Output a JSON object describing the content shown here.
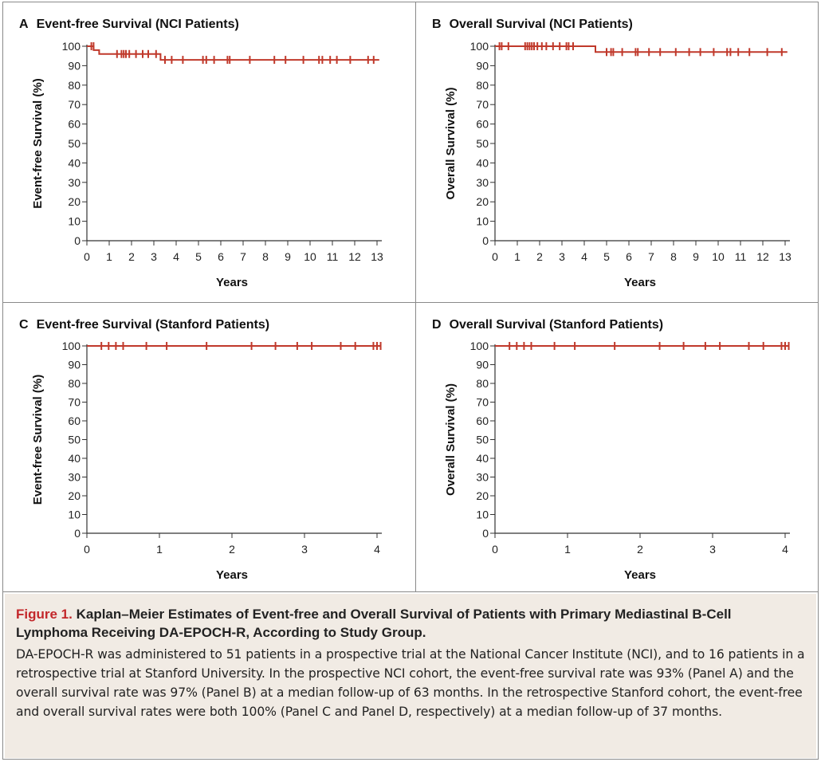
{
  "figure": {
    "label": "Figure 1.",
    "title": "Kaplan–Meier Estimates of Event-free and Overall Survival of Patients with Primary Mediastinal B-Cell Lymphoma Receiving DA-EPOCH-R, According to Study Group.",
    "body": "DA-EPOCH-R was administered to 51 patients in a prospective trial at the National Cancer Institute (NCI), and to 16 patients in a retrospective trial at Stanford University. In the prospective NCI cohort, the event-free survival rate was 93% (Panel A) and the overall survival rate was 97% (Panel B) at a median follow-up of 63 months. In the retrospective Stanford cohort, the event-free and overall survival rates were both 100% (Panel C and Panel D, respectively) at a median follow-up of 37 months."
  },
  "colors": {
    "curve": "#c0392b",
    "axis": "#333333",
    "frame": "#8a8a8a",
    "caption_bg": "#f1ebe4",
    "figure_label": "#c3282b"
  },
  "chart_data": [
    {
      "panel": "A",
      "type": "line",
      "step": true,
      "title": "Event-free Survival (NCI Patients)",
      "xlabel": "Years",
      "ylabel": "Event-free Survival (%)",
      "xlim": [
        0,
        13
      ],
      "ylim": [
        0,
        100
      ],
      "xticks": [
        0,
        1,
        2,
        3,
        4,
        5,
        6,
        7,
        8,
        9,
        10,
        11,
        12,
        13
      ],
      "yticks": [
        0,
        10,
        20,
        30,
        40,
        50,
        60,
        70,
        80,
        90,
        100
      ],
      "series": [
        {
          "steps": [
            [
              0,
              100
            ],
            [
              0.3,
              98
            ],
            [
              0.55,
              96
            ],
            [
              3.3,
              93
            ],
            [
              13.1,
              93
            ]
          ],
          "censored": [
            [
              0.2,
              100
            ],
            [
              0.3,
              100
            ],
            [
              1.35,
              96
            ],
            [
              1.55,
              96
            ],
            [
              1.65,
              96
            ],
            [
              1.75,
              96
            ],
            [
              1.9,
              96
            ],
            [
              2.2,
              96
            ],
            [
              2.5,
              96
            ],
            [
              2.75,
              96
            ],
            [
              3.1,
              96
            ],
            [
              3.5,
              93
            ],
            [
              3.8,
              93
            ],
            [
              4.3,
              93
            ],
            [
              5.2,
              93
            ],
            [
              5.35,
              93
            ],
            [
              5.7,
              93
            ],
            [
              6.3,
              93
            ],
            [
              6.4,
              93
            ],
            [
              7.3,
              93
            ],
            [
              8.4,
              93
            ],
            [
              8.9,
              93
            ],
            [
              9.7,
              93
            ],
            [
              10.4,
              93
            ],
            [
              10.55,
              93
            ],
            [
              10.9,
              93
            ],
            [
              11.2,
              93
            ],
            [
              11.8,
              93
            ],
            [
              12.6,
              93
            ],
            [
              12.85,
              93
            ]
          ]
        }
      ]
    },
    {
      "panel": "B",
      "type": "line",
      "step": true,
      "title": "Overall Survival (NCI Patients)",
      "xlabel": "Years",
      "ylabel": "Overall Survival (%)",
      "xlim": [
        0,
        13
      ],
      "ylim": [
        0,
        100
      ],
      "xticks": [
        0,
        1,
        2,
        3,
        4,
        5,
        6,
        7,
        8,
        9,
        10,
        11,
        12,
        13
      ],
      "yticks": [
        0,
        10,
        20,
        30,
        40,
        50,
        60,
        70,
        80,
        90,
        100
      ],
      "series": [
        {
          "steps": [
            [
              0,
              100
            ],
            [
              4.5,
              97
            ],
            [
              13.1,
              97
            ]
          ],
          "censored": [
            [
              0.2,
              100
            ],
            [
              0.3,
              100
            ],
            [
              0.6,
              100
            ],
            [
              1.35,
              100
            ],
            [
              1.45,
              100
            ],
            [
              1.55,
              100
            ],
            [
              1.65,
              100
            ],
            [
              1.75,
              100
            ],
            [
              1.9,
              100
            ],
            [
              2.1,
              100
            ],
            [
              2.3,
              100
            ],
            [
              2.6,
              100
            ],
            [
              2.9,
              100
            ],
            [
              3.2,
              100
            ],
            [
              3.3,
              100
            ],
            [
              3.5,
              100
            ],
            [
              5.0,
              97
            ],
            [
              5.2,
              97
            ],
            [
              5.3,
              97
            ],
            [
              5.7,
              97
            ],
            [
              6.3,
              97
            ],
            [
              6.4,
              97
            ],
            [
              6.9,
              97
            ],
            [
              7.4,
              97
            ],
            [
              8.1,
              97
            ],
            [
              8.7,
              97
            ],
            [
              9.2,
              97
            ],
            [
              9.8,
              97
            ],
            [
              10.4,
              97
            ],
            [
              10.55,
              97
            ],
            [
              10.9,
              97
            ],
            [
              11.4,
              97
            ],
            [
              12.2,
              97
            ],
            [
              12.85,
              97
            ]
          ]
        }
      ]
    },
    {
      "panel": "C",
      "type": "line",
      "step": true,
      "title": "Event-free Survival (Stanford Patients)",
      "xlabel": "Years",
      "ylabel": "Event-free Survival (%)",
      "xlim": [
        0,
        4
      ],
      "ylim": [
        0,
        100
      ],
      "xticks": [
        0,
        1,
        2,
        3,
        4
      ],
      "yticks": [
        0,
        10,
        20,
        30,
        40,
        50,
        60,
        70,
        80,
        90,
        100
      ],
      "series": [
        {
          "steps": [
            [
              0,
              100
            ],
            [
              4.05,
              100
            ]
          ],
          "censored": [
            [
              0.2,
              100
            ],
            [
              0.3,
              100
            ],
            [
              0.4,
              100
            ],
            [
              0.5,
              100
            ],
            [
              0.82,
              100
            ],
            [
              1.1,
              100
            ],
            [
              1.65,
              100
            ],
            [
              2.27,
              100
            ],
            [
              2.6,
              100
            ],
            [
              2.9,
              100
            ],
            [
              3.1,
              100
            ],
            [
              3.5,
              100
            ],
            [
              3.7,
              100
            ],
            [
              3.95,
              100
            ],
            [
              4.0,
              100
            ],
            [
              4.05,
              100
            ]
          ]
        }
      ]
    },
    {
      "panel": "D",
      "type": "line",
      "step": true,
      "title": "Overall Survival (Stanford Patients)",
      "xlabel": "Years",
      "ylabel": "Overall Survival (%)",
      "xlim": [
        0,
        4
      ],
      "ylim": [
        0,
        100
      ],
      "xticks": [
        0,
        1,
        2,
        3,
        4
      ],
      "yticks": [
        0,
        10,
        20,
        30,
        40,
        50,
        60,
        70,
        80,
        90,
        100
      ],
      "series": [
        {
          "steps": [
            [
              0,
              100
            ],
            [
              4.05,
              100
            ]
          ],
          "censored": [
            [
              0.2,
              100
            ],
            [
              0.3,
              100
            ],
            [
              0.4,
              100
            ],
            [
              0.5,
              100
            ],
            [
              0.82,
              100
            ],
            [
              1.1,
              100
            ],
            [
              1.65,
              100
            ],
            [
              2.27,
              100
            ],
            [
              2.6,
              100
            ],
            [
              2.9,
              100
            ],
            [
              3.1,
              100
            ],
            [
              3.5,
              100
            ],
            [
              3.7,
              100
            ],
            [
              3.95,
              100
            ],
            [
              4.0,
              100
            ],
            [
              4.05,
              100
            ]
          ]
        }
      ]
    }
  ]
}
